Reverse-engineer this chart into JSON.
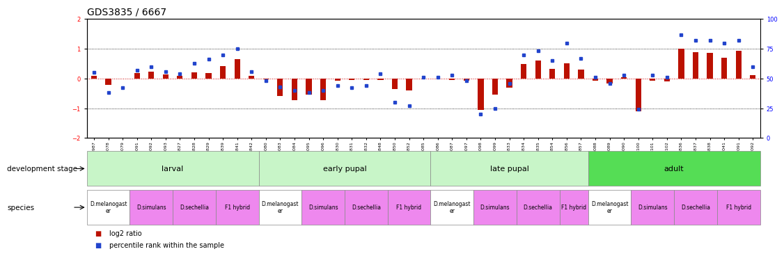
{
  "title": "GDS3835 / 6667",
  "samples": [
    "GSM435987",
    "GSM436078",
    "GSM436079",
    "GSM436091",
    "GSM436092",
    "GSM436093",
    "GSM436827",
    "GSM436828",
    "GSM436829",
    "GSM436839",
    "GSM436841",
    "GSM436842",
    "GSM436080",
    "GSM436083",
    "GSM436084",
    "GSM436095",
    "GSM436096",
    "GSM436830",
    "GSM436831",
    "GSM436832",
    "GSM436848",
    "GSM436850",
    "GSM436852",
    "GSM436085",
    "GSM436086",
    "GSM436087",
    "GSM136097",
    "GSM436098",
    "GSM436099",
    "GSM436833",
    "GSM436834",
    "GSM436835",
    "GSM436854",
    "GSM436856",
    "GSM436857",
    "GSM436088",
    "GSM436089",
    "GSM436090",
    "GSM436100",
    "GSM436101",
    "GSM436102",
    "GSM436836",
    "GSM436837",
    "GSM436838",
    "GSM437041",
    "GSM437091",
    "GSM437092"
  ],
  "log2ratio": [
    0.08,
    -0.22,
    0.0,
    0.18,
    0.22,
    0.14,
    0.08,
    0.2,
    0.18,
    0.42,
    0.65,
    0.1,
    -0.02,
    -0.6,
    -0.72,
    -0.55,
    -0.72,
    -0.08,
    -0.05,
    -0.05,
    -0.05,
    -0.35,
    -0.4,
    0.0,
    0.0,
    -0.05,
    -0.08,
    -1.05,
    -0.55,
    -0.3,
    0.48,
    0.6,
    0.32,
    0.52,
    0.3,
    -0.08,
    -0.18,
    0.04,
    -1.1,
    -0.08,
    -0.1,
    1.0,
    0.88,
    0.85,
    0.7,
    0.92,
    0.12
  ],
  "percentile": [
    55,
    38,
    42,
    57,
    60,
    56,
    54,
    63,
    66,
    70,
    75,
    56,
    48,
    43,
    40,
    38,
    40,
    44,
    42,
    44,
    54,
    30,
    27,
    51,
    51,
    53,
    48,
    20,
    25,
    46,
    70,
    73,
    65,
    80,
    67,
    51,
    46,
    53,
    24,
    53,
    51,
    87,
    82,
    82,
    80,
    82,
    60
  ],
  "dev_stages": [
    {
      "label": "larval",
      "start": 0,
      "end": 12,
      "color": "#c8f5c8"
    },
    {
      "label": "early pupal",
      "start": 12,
      "end": 24,
      "color": "#c8f5c8"
    },
    {
      "label": "late pupal",
      "start": 24,
      "end": 35,
      "color": "#c8f5c8"
    },
    {
      "label": "adult",
      "start": 35,
      "end": 47,
      "color": "#55dd55"
    }
  ],
  "species_blocks": [
    {
      "label": "D.melanogast\ner",
      "start": 0,
      "end": 3,
      "color": "#ffffff"
    },
    {
      "label": "D.simulans",
      "start": 3,
      "end": 6,
      "color": "#ee88ee"
    },
    {
      "label": "D.sechellia",
      "start": 6,
      "end": 9,
      "color": "#ee88ee"
    },
    {
      "label": "F1 hybrid",
      "start": 9,
      "end": 12,
      "color": "#ee88ee"
    },
    {
      "label": "D.melanogast\ner",
      "start": 12,
      "end": 15,
      "color": "#ffffff"
    },
    {
      "label": "D.simulans",
      "start": 15,
      "end": 18,
      "color": "#ee88ee"
    },
    {
      "label": "D.sechellia",
      "start": 18,
      "end": 21,
      "color": "#ee88ee"
    },
    {
      "label": "F1 hybrid",
      "start": 21,
      "end": 24,
      "color": "#ee88ee"
    },
    {
      "label": "D.melanogast\ner",
      "start": 24,
      "end": 27,
      "color": "#ffffff"
    },
    {
      "label": "D.simulans",
      "start": 27,
      "end": 30,
      "color": "#ee88ee"
    },
    {
      "label": "D.sechellia",
      "start": 30,
      "end": 33,
      "color": "#ee88ee"
    },
    {
      "label": "F1 hybrid",
      "start": 33,
      "end": 35,
      "color": "#ee88ee"
    },
    {
      "label": "D.melanogast\ner",
      "start": 35,
      "end": 38,
      "color": "#ffffff"
    },
    {
      "label": "D.simulans",
      "start": 38,
      "end": 41,
      "color": "#ee88ee"
    },
    {
      "label": "D.sechellia",
      "start": 41,
      "end": 44,
      "color": "#ee88ee"
    },
    {
      "label": "F1 hybrid",
      "start": 44,
      "end": 47,
      "color": "#ee88ee"
    }
  ],
  "ylim": [
    -2,
    2
  ],
  "y2lim": [
    0,
    100
  ],
  "bar_color": "#bb1100",
  "dot_color": "#2244cc",
  "ref_line_color": "#cc0000",
  "background_color": "#ffffff",
  "title_fontsize": 10,
  "tick_fontsize": 6,
  "sample_fontsize": 4.5,
  "label_fontsize": 7.5
}
